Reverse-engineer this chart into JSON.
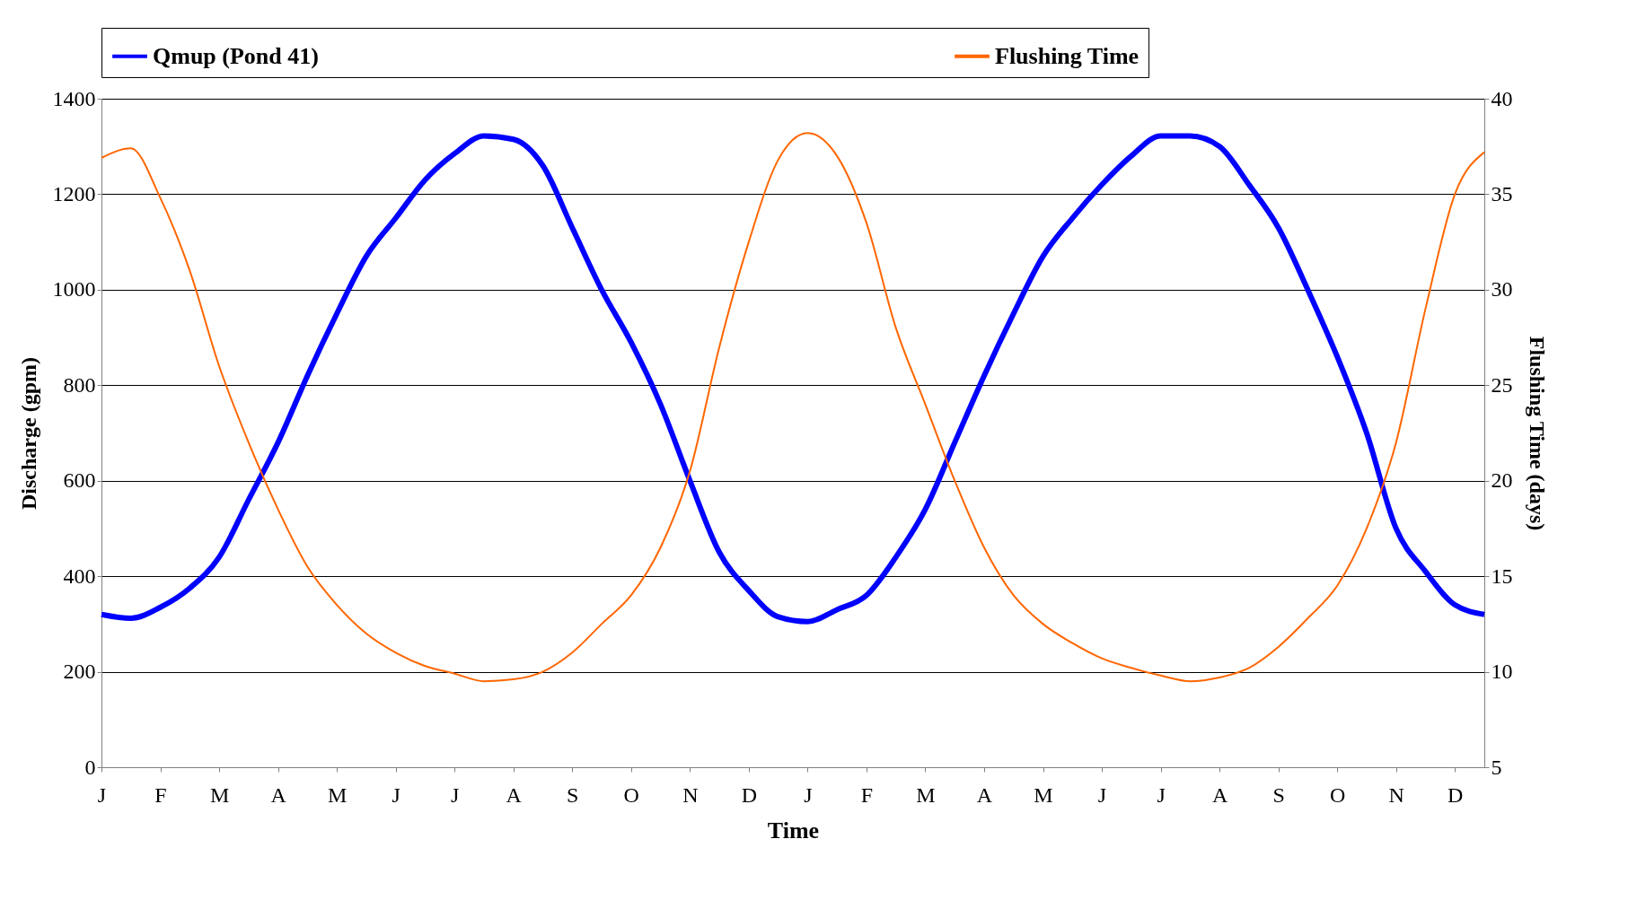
{
  "chart_data": {
    "type": "line",
    "xlabel": "Time",
    "ylabel": "Discharge (gpm)",
    "y2label": "Flushing Time (days)",
    "categories": [
      "J",
      null,
      "F",
      null,
      "M",
      null,
      "A",
      null,
      "M",
      null,
      "J",
      null,
      "J",
      null,
      "A",
      null,
      "S",
      null,
      "O",
      null,
      "N",
      null,
      "D",
      null,
      "J",
      null,
      "F",
      null,
      "M",
      null,
      "A",
      null,
      "M",
      null,
      "J",
      null,
      "J",
      null,
      "A",
      null,
      "S",
      null,
      "O",
      null,
      "N",
      null,
      "D",
      null
    ],
    "ylim": [
      0,
      1400
    ],
    "yticks": [
      0,
      200,
      400,
      600,
      800,
      1000,
      1200,
      1400
    ],
    "y2lim": [
      5,
      40
    ],
    "y2ticks": [
      5,
      10,
      15,
      20,
      25,
      30,
      35,
      40
    ],
    "grid": "y",
    "legend": "top",
    "marker": "none",
    "line_style": "solid",
    "series": [
      {
        "name": "Qmup (Pond 41)",
        "color": "#0000ff",
        "values": [
          320,
          312,
          335,
          375,
          440,
          560,
          680,
          820,
          950,
          1070,
          1150,
          1230,
          1285,
          1322,
          1315,
          1260,
          1130,
          1000,
          890,
          760,
          600,
          450,
          370,
          315,
          305,
          330,
          360,
          440,
          540,
          680,
          820,
          950,
          1070,
          1150,
          1220,
          1280,
          1322,
          1322,
          1300,
          1220,
          1130,
          1000,
          860,
          700,
          500,
          410,
          340,
          320
        ]
      },
      {
        "name": "Flushing Time",
        "color": "#ff6600",
        "axis": "y2",
        "values": [
          36.9,
          37.4,
          34.8,
          31.0,
          26.0,
          22.0,
          18.5,
          15.5,
          13.5,
          12.0,
          11.0,
          10.3,
          9.9,
          9.5,
          9.6,
          10.0,
          11.0,
          12.5,
          14.0,
          16.5,
          20.5,
          27.0,
          32.5,
          36.8,
          38.2,
          37.0,
          33.5,
          28.0,
          24.0,
          20.0,
          16.5,
          14.0,
          12.5,
          11.5,
          10.7,
          10.2,
          9.8,
          9.5,
          9.7,
          10.2,
          11.3,
          12.8,
          14.5,
          17.5,
          22.0,
          29.0,
          35.0,
          37.2
        ]
      }
    ]
  }
}
